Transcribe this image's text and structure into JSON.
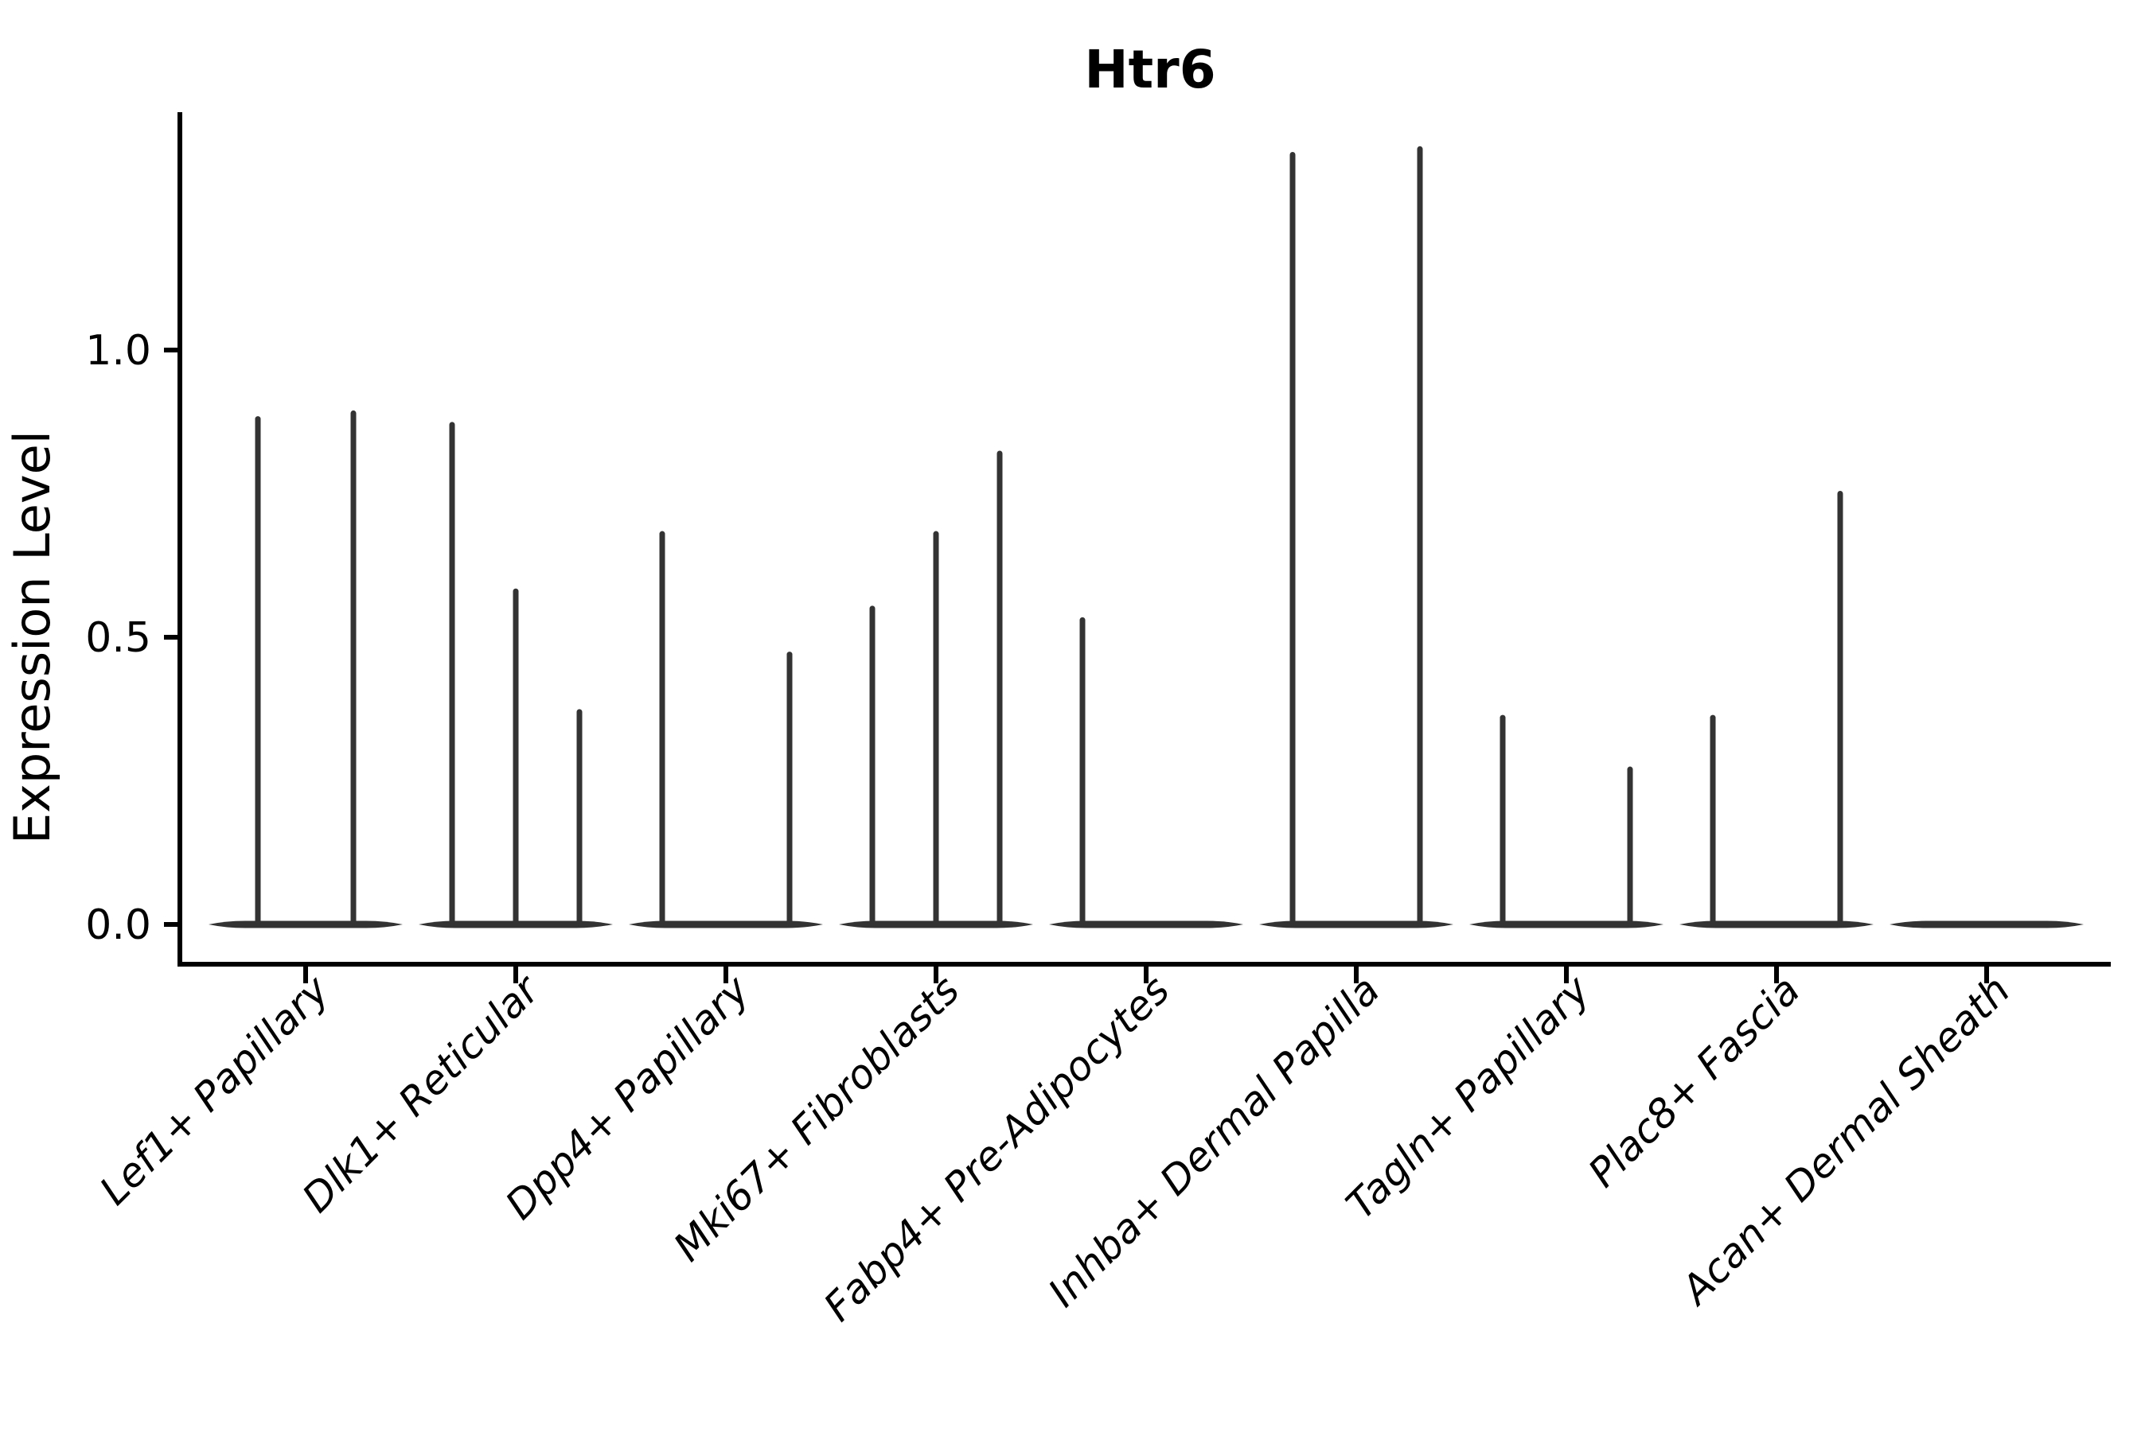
{
  "chart_data": {
    "type": "violin",
    "title": "Htr6",
    "ylabel": "Expression Level",
    "xlabel": "",
    "legend_position": "none",
    "grid": false,
    "background": "#ffffff",
    "yticks": [
      "0.0",
      "0.5",
      "1.0"
    ],
    "ytick_values": [
      0.0,
      0.5,
      1.0
    ],
    "ylim": [
      -0.07,
      1.41
    ],
    "categories": [
      "Lef1+ Papillary",
      "Dlk1+ Reticular",
      "Dpp4+ Papillary",
      "Mki67+ Fibroblasts",
      "Fabp4+ Pre-Adipocytes",
      "Inhba+ Dermal Papilla",
      "Tagln+ Papillary",
      "Plac8+ Fascia",
      "Acan+ Dermal Sheath"
    ],
    "groups": [
      {
        "label": "Lef1+ Papillary",
        "violins": [
          {
            "offset": -60,
            "max": 0.88
          },
          {
            "offset": 60,
            "max": 0.89
          }
        ]
      },
      {
        "label": "Dlk1+ Reticular",
        "violins": [
          {
            "offset": -80,
            "max": 0.87
          },
          {
            "offset": 0,
            "max": 0.58
          },
          {
            "offset": 80,
            "max": 0.37
          }
        ]
      },
      {
        "label": "Dpp4+ Papillary",
        "violins": [
          {
            "offset": -80,
            "max": 0.68
          },
          {
            "offset": 80,
            "max": 0.47
          }
        ]
      },
      {
        "label": "Mki67+ Fibroblasts",
        "violins": [
          {
            "offset": -80,
            "max": 0.55
          },
          {
            "offset": 0,
            "max": 0.68
          },
          {
            "offset": 80,
            "max": 0.82
          }
        ]
      },
      {
        "label": "Fabp4+ Pre-Adipocytes",
        "violins": [
          {
            "offset": -80,
            "max": 0.53
          }
        ]
      },
      {
        "label": "Inhba+ Dermal Papilla",
        "violins": [
          {
            "offset": -80,
            "max": 1.34
          },
          {
            "offset": 80,
            "max": 1.35
          }
        ]
      },
      {
        "label": "Tagln+ Papillary",
        "violins": [
          {
            "offset": -80,
            "max": 0.36
          },
          {
            "offset": 80,
            "max": 0.27
          }
        ]
      },
      {
        "label": "Plac8+ Fascia",
        "violins": [
          {
            "offset": -80,
            "max": 0.36
          },
          {
            "offset": 80,
            "max": 0.75
          }
        ]
      },
      {
        "label": "Acan+ Dermal Sheath",
        "violins": []
      }
    ],
    "all_violins_baseline_value": 0.0,
    "colors": {
      "violin": "#333333",
      "axis": "#000000",
      "text": "#000000",
      "background": "#ffffff"
    }
  }
}
